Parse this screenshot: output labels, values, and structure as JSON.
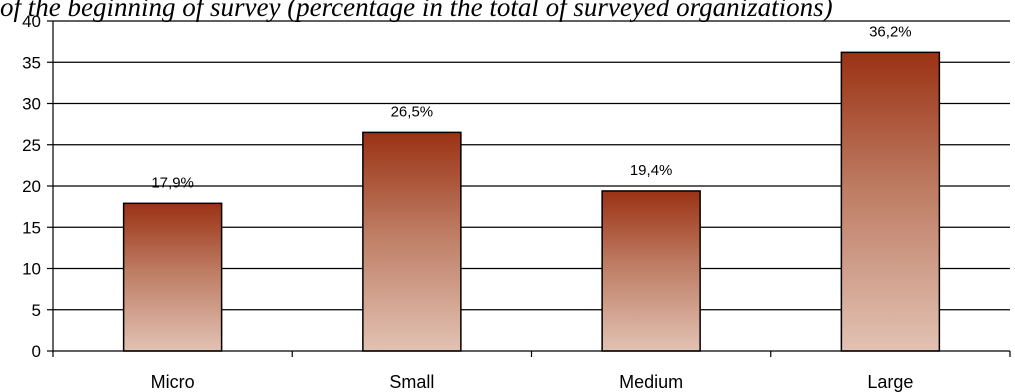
{
  "caption": "of the beginning of survey (percentage in the total of surveyed organizations)",
  "chart_data": {
    "type": "bar",
    "categories": [
      "Micro",
      "Small",
      "Medium",
      "Large"
    ],
    "values": [
      17.9,
      26.5,
      19.4,
      36.2
    ],
    "data_labels": [
      "17,9%",
      "26,5%",
      "19,4%",
      "36,2%"
    ],
    "ylim": [
      0,
      40
    ],
    "yticks": [
      0,
      5,
      10,
      15,
      20,
      25,
      30,
      35,
      40
    ],
    "grid": true,
    "legend": "none",
    "colors": {
      "bar_top": "#9b3214",
      "bar_bottom": "#e2c2b3",
      "bar_stroke": "#000000"
    }
  }
}
